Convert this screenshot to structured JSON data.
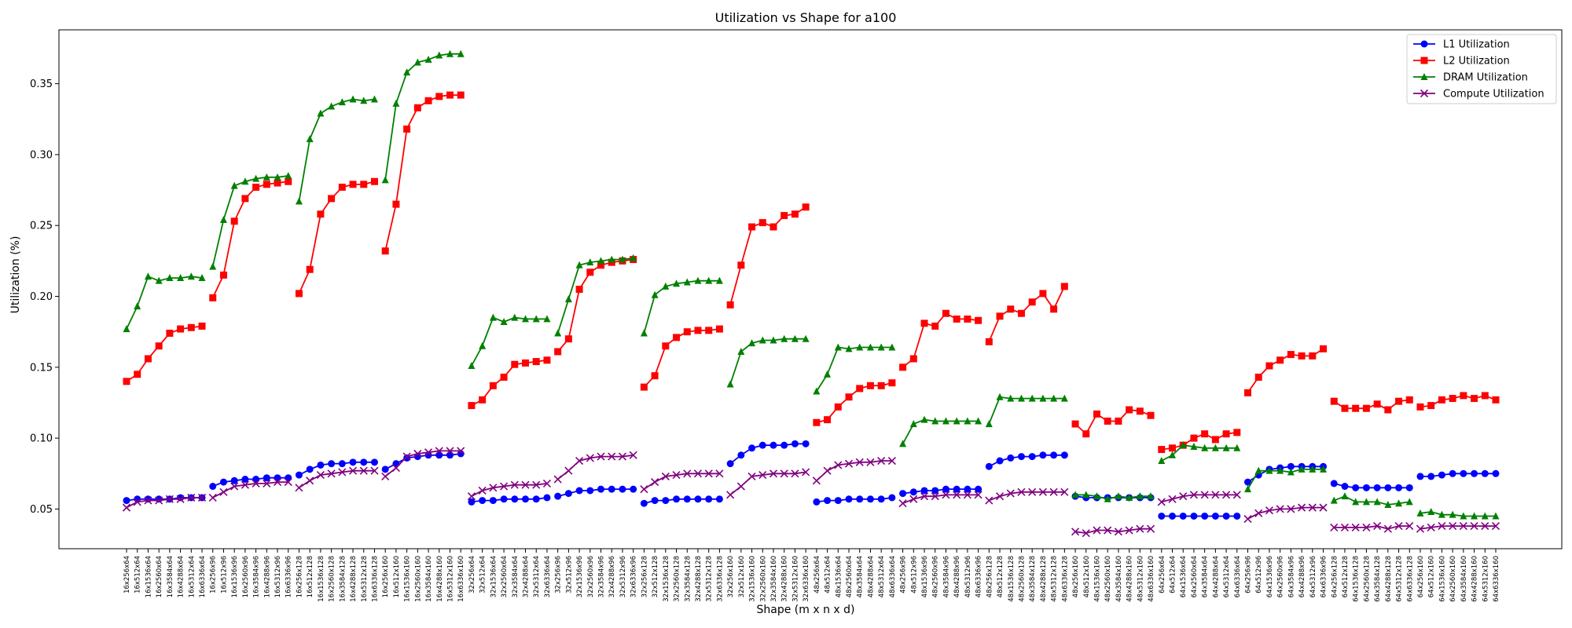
{
  "chart_data": {
    "type": "line",
    "title": "Utilization vs Shape for a100",
    "xlabel": "Shape (m x n x d)",
    "ylabel": "Utilization (%)",
    "ylim": [
      0.022,
      0.388
    ],
    "yticks": [
      0.05,
      0.1,
      0.15,
      0.2,
      0.25,
      0.3,
      0.35
    ],
    "ytick_labels": [
      "0.05",
      "0.10",
      "0.15",
      "0.20",
      "0.25",
      "0.30",
      "0.35"
    ],
    "grid": false,
    "legend_position": "top-right",
    "categories": [
      "16x256x64",
      "16x512x64",
      "16x1536x64",
      "16x2560x64",
      "16x3584x64",
      "16x4288x64",
      "16x5312x64",
      "16x6336x64",
      "16x256x96",
      "16x512x96",
      "16x1536x96",
      "16x2560x96",
      "16x3584x96",
      "16x4288x96",
      "16x5312x96",
      "16x6336x96",
      "16x256x128",
      "16x512x128",
      "16x1536x128",
      "16x2560x128",
      "16x3584x128",
      "16x4288x128",
      "16x5312x128",
      "16x6336x128",
      "16x256x160",
      "16x512x160",
      "16x1536x160",
      "16x2560x160",
      "16x3584x160",
      "16x4288x160",
      "16x5312x160",
      "16x6336x160",
      "32x256x64",
      "32x512x64",
      "32x1536x64",
      "32x2560x64",
      "32x3584x64",
      "32x4288x64",
      "32x5312x64",
      "32x6336x64",
      "32x256x96",
      "32x512x96",
      "32x1536x96",
      "32x2560x96",
      "32x3584x96",
      "32x4288x96",
      "32x5312x96",
      "32x6336x96",
      "32x256x128",
      "32x512x128",
      "32x1536x128",
      "32x2560x128",
      "32x3584x128",
      "32x4288x128",
      "32x5312x128",
      "32x6336x128",
      "32x256x160",
      "32x512x160",
      "32x1536x160",
      "32x2560x160",
      "32x3584x160",
      "32x4288x160",
      "32x5312x160",
      "32x6336x160",
      "48x256x64",
      "48x512x64",
      "48x1536x64",
      "48x2560x64",
      "48x3584x64",
      "48x4288x64",
      "48x5312x64",
      "48x6336x64",
      "48x256x96",
      "48x512x96",
      "48x1536x96",
      "48x2560x96",
      "48x3584x96",
      "48x4288x96",
      "48x5312x96",
      "48x6336x96",
      "48x256x128",
      "48x512x128",
      "48x1536x128",
      "48x2560x128",
      "48x3584x128",
      "48x4288x128",
      "48x5312x128",
      "48x6336x128",
      "48x256x160",
      "48x512x160",
      "48x1536x160",
      "48x2560x160",
      "48x3584x160",
      "48x4288x160",
      "48x5312x160",
      "48x6336x160",
      "64x256x64",
      "64x512x64",
      "64x1536x64",
      "64x2560x64",
      "64x3584x64",
      "64x4288x64",
      "64x5312x64",
      "64x6336x64",
      "64x256x96",
      "64x512x96",
      "64x1536x96",
      "64x2560x96",
      "64x3584x96",
      "64x4288x96",
      "64x5312x96",
      "64x6336x96",
      "64x256x128",
      "64x512x128",
      "64x1536x128",
      "64x2560x128",
      "64x3584x128",
      "64x4288x128",
      "64x5312x128",
      "64x6336x128",
      "64x256x160",
      "64x512x160",
      "64x1536x160",
      "64x2560x160",
      "64x3584x160",
      "64x4288x160",
      "64x5312x160",
      "64x6336x160"
    ],
    "series": [
      {
        "name": "L1 Utilization",
        "color": "#0000ff",
        "marker": "circle",
        "values": [
          0.056,
          0.057,
          0.057,
          0.057,
          0.057,
          0.058,
          0.058,
          0.058,
          0.066,
          0.069,
          0.07,
          0.071,
          0.071,
          0.072,
          0.072,
          0.072,
          0.074,
          0.078,
          0.081,
          0.082,
          0.082,
          0.083,
          0.083,
          0.083,
          0.078,
          0.082,
          0.086,
          0.087,
          0.088,
          0.088,
          0.088,
          0.089,
          0.055,
          0.056,
          0.056,
          0.057,
          0.057,
          0.057,
          0.057,
          0.058,
          0.059,
          0.061,
          0.063,
          0.063,
          0.064,
          0.064,
          0.064,
          0.064,
          0.054,
          0.056,
          0.056,
          0.057,
          0.057,
          0.057,
          0.057,
          0.057,
          0.082,
          0.088,
          0.093,
          0.095,
          0.095,
          0.095,
          0.096,
          0.096,
          0.055,
          0.056,
          0.056,
          0.057,
          0.057,
          0.057,
          0.057,
          0.058,
          0.061,
          0.062,
          0.063,
          0.063,
          0.064,
          0.064,
          0.064,
          0.064,
          0.08,
          0.084,
          0.086,
          0.087,
          0.087,
          0.088,
          0.088,
          0.088,
          0.059,
          0.058,
          0.058,
          0.058,
          0.058,
          0.058,
          0.058,
          0.058,
          0.045,
          0.045,
          0.045,
          0.045,
          0.045,
          0.045,
          0.045,
          0.045,
          0.069,
          0.074,
          0.078,
          0.079,
          0.08,
          0.08,
          0.08,
          0.08,
          0.068,
          0.066,
          0.065,
          0.065,
          0.065,
          0.065,
          0.065,
          0.065,
          0.073,
          0.073,
          0.074,
          0.075,
          0.075,
          0.075,
          0.075,
          0.075
        ]
      },
      {
        "name": "L2 Utilization",
        "color": "#ff0000",
        "marker": "square",
        "values": [
          0.14,
          0.145,
          0.156,
          0.165,
          0.174,
          0.177,
          0.178,
          0.179,
          0.199,
          0.215,
          0.253,
          0.269,
          0.277,
          0.279,
          0.28,
          0.281,
          0.202,
          0.219,
          0.258,
          0.269,
          0.277,
          0.279,
          0.279,
          0.281,
          0.232,
          0.265,
          0.318,
          0.333,
          0.338,
          0.341,
          0.342,
          0.342,
          0.123,
          0.127,
          0.137,
          0.143,
          0.152,
          0.153,
          0.154,
          0.155,
          0.161,
          0.17,
          0.205,
          0.217,
          0.222,
          0.224,
          0.225,
          0.226,
          0.136,
          0.144,
          0.165,
          0.171,
          0.175,
          0.176,
          0.176,
          0.177,
          0.194,
          0.222,
          0.249,
          0.252,
          0.249,
          0.257,
          0.258,
          0.263,
          0.111,
          0.113,
          0.122,
          0.129,
          0.135,
          0.137,
          0.137,
          0.139,
          0.15,
          0.156,
          0.181,
          0.179,
          0.188,
          0.184,
          0.184,
          0.183,
          0.168,
          0.186,
          0.191,
          0.188,
          0.196,
          0.202,
          0.191,
          0.207,
          0.11,
          0.103,
          0.117,
          0.112,
          0.112,
          0.12,
          0.119,
          0.116,
          0.092,
          0.093,
          0.095,
          0.1,
          0.103,
          0.099,
          0.103,
          0.104,
          0.132,
          0.143,
          0.151,
          0.155,
          0.159,
          0.158,
          0.158,
          0.163,
          0.126,
          0.121,
          0.121,
          0.121,
          0.124,
          0.12,
          0.126,
          0.127,
          0.122,
          0.123,
          0.127,
          0.128,
          0.13,
          0.128,
          0.13,
          0.127
        ]
      },
      {
        "name": "DRAM Utilization",
        "color": "#008000",
        "marker": "triangle",
        "values": [
          0.177,
          0.193,
          0.214,
          0.211,
          0.213,
          0.213,
          0.214,
          0.213,
          0.221,
          0.254,
          0.278,
          0.281,
          0.283,
          0.284,
          0.284,
          0.285,
          0.267,
          0.311,
          0.329,
          0.334,
          0.337,
          0.339,
          0.338,
          0.339,
          0.282,
          0.336,
          0.358,
          0.365,
          0.367,
          0.37,
          0.371,
          0.371,
          0.151,
          0.165,
          0.185,
          0.182,
          0.185,
          0.184,
          0.184,
          0.184,
          0.174,
          0.198,
          0.222,
          0.224,
          0.225,
          0.226,
          0.226,
          0.227,
          0.174,
          0.201,
          0.207,
          0.209,
          0.21,
          0.211,
          0.211,
          0.211,
          0.138,
          0.161,
          0.167,
          0.169,
          0.169,
          0.17,
          0.17,
          0.17,
          0.133,
          0.145,
          0.164,
          0.163,
          0.164,
          0.164,
          0.164,
          0.164,
          0.096,
          0.11,
          0.113,
          0.112,
          0.112,
          0.112,
          0.112,
          0.112,
          0.11,
          0.129,
          0.128,
          0.128,
          0.128,
          0.128,
          0.128,
          0.128,
          0.06,
          0.06,
          0.059,
          0.057,
          0.059,
          0.058,
          0.059,
          0.059,
          0.084,
          0.088,
          0.095,
          0.094,
          0.093,
          0.093,
          0.093,
          0.093,
          0.064,
          0.077,
          0.077,
          0.077,
          0.076,
          0.078,
          0.078,
          0.078,
          0.056,
          0.059,
          0.055,
          0.055,
          0.055,
          0.053,
          0.054,
          0.055,
          0.047,
          0.048,
          0.046,
          0.046,
          0.045,
          0.045,
          0.045,
          0.045
        ]
      },
      {
        "name": "Compute Utilization",
        "color": "#800080",
        "marker": "x",
        "values": [
          0.051,
          0.055,
          0.056,
          0.056,
          0.057,
          0.057,
          0.058,
          0.058,
          0.058,
          0.062,
          0.066,
          0.067,
          0.068,
          0.068,
          0.069,
          0.069,
          0.065,
          0.07,
          0.074,
          0.075,
          0.076,
          0.077,
          0.077,
          0.077,
          0.073,
          0.079,
          0.087,
          0.089,
          0.09,
          0.091,
          0.091,
          0.091,
          0.059,
          0.063,
          0.065,
          0.066,
          0.067,
          0.067,
          0.067,
          0.068,
          0.071,
          0.077,
          0.084,
          0.086,
          0.087,
          0.087,
          0.087,
          0.088,
          0.064,
          0.069,
          0.073,
          0.074,
          0.075,
          0.075,
          0.075,
          0.075,
          0.06,
          0.066,
          0.073,
          0.074,
          0.075,
          0.075,
          0.075,
          0.076,
          0.07,
          0.077,
          0.081,
          0.082,
          0.083,
          0.083,
          0.084,
          0.084,
          0.054,
          0.057,
          0.059,
          0.059,
          0.06,
          0.06,
          0.06,
          0.06,
          0.056,
          0.059,
          0.061,
          0.062,
          0.062,
          0.062,
          0.062,
          0.062,
          0.034,
          0.033,
          0.035,
          0.035,
          0.034,
          0.035,
          0.036,
          0.036,
          0.055,
          0.057,
          0.059,
          0.06,
          0.06,
          0.06,
          0.06,
          0.06,
          0.043,
          0.047,
          0.049,
          0.05,
          0.05,
          0.051,
          0.051,
          0.051,
          0.037,
          0.037,
          0.037,
          0.037,
          0.038,
          0.036,
          0.038,
          0.038,
          0.036,
          0.037,
          0.038,
          0.038,
          0.038,
          0.038,
          0.038,
          0.038
        ]
      }
    ]
  }
}
